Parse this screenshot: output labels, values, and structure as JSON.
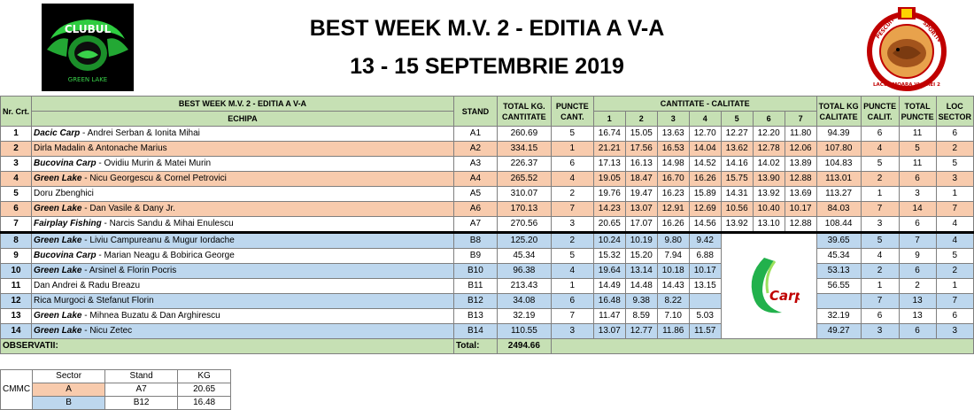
{
  "header": {
    "title_line1": "BEST WEEK M.V. 2 - EDITIA A V-A",
    "title_line2": "13 - 15 SEPTEMBRIE 2019",
    "logo_left_text_top": "CLUBUL",
    "logo_left_text_bottom": "GREEN LAKE",
    "logo_right_text_left": "PESCUIT",
    "logo_right_text_right": "SPORTIV",
    "logo_right_text_bottom": "LACUL MOARA VLASIEI 2"
  },
  "table": {
    "col_nr": "Nr. Crt.",
    "event_label": "BEST WEEK M.V. 2 - EDITIA A V-A",
    "team_header": "ECHIPA",
    "stand_header": "STAND",
    "total_kg_header_1": "TOTAL KG.",
    "total_kg_header_2": "CANTITATE",
    "puncte_cant_header_1": "PUNCTE",
    "puncte_cant_header_2": "CANT.",
    "cantitate_calitate_header": "CANTITATE - CALITATE",
    "round_headers": [
      "1",
      "2",
      "3",
      "4",
      "5",
      "6",
      "7"
    ],
    "total_kg_cal_header_1": "TOTAL KG",
    "total_kg_cal_header_2": "CALITATE",
    "puncte_calit_header_1": "PUNCTE",
    "puncte_calit_header_2": "CALIT.",
    "total_puncte_header_1": "TOTAL",
    "total_puncte_header_2": "PUNCTE",
    "loc_sector_header_1": "LOC",
    "loc_sector_header_2": "SECTOR",
    "rows": [
      {
        "nr": "1",
        "team": "Dacic Carp",
        "members": " - Andrei Serban & Ionita Mihai",
        "stand": "A1",
        "total_kg": "260.69",
        "puncte_cant": "5",
        "r": [
          "16.74",
          "15.05",
          "13.63",
          "12.70",
          "12.27",
          "12.20",
          "11.80"
        ],
        "total_cal": "94.39",
        "puncte_cal": "6",
        "total_puncte": "11",
        "loc": "6",
        "color": "white"
      },
      {
        "nr": "2",
        "team": "",
        "members": "Dirla Madalin & Antonache Marius",
        "stand": "A2",
        "total_kg": "334.15",
        "puncte_cant": "1",
        "r": [
          "21.21",
          "17.56",
          "16.53",
          "14.04",
          "13.62",
          "12.78",
          "12.06"
        ],
        "total_cal": "107.80",
        "puncte_cal": "4",
        "total_puncte": "5",
        "loc": "2",
        "color": "peach"
      },
      {
        "nr": "3",
        "team": "Bucovina Carp",
        "members": " - Ovidiu Murin & Matei Murin",
        "stand": "A3",
        "total_kg": "226.37",
        "puncte_cant": "6",
        "r": [
          "17.13",
          "16.13",
          "14.98",
          "14.52",
          "14.16",
          "14.02",
          "13.89"
        ],
        "total_cal": "104.83",
        "puncte_cal": "5",
        "total_puncte": "11",
        "loc": "5",
        "color": "white"
      },
      {
        "nr": "4",
        "team": "Green Lake",
        "members": " - Nicu Georgescu & Cornel Petrovici",
        "stand": "A4",
        "total_kg": "265.52",
        "puncte_cant": "4",
        "r": [
          "19.05",
          "18.47",
          "16.70",
          "16.26",
          "15.75",
          "13.90",
          "12.88"
        ],
        "total_cal": "113.01",
        "puncte_cal": "2",
        "total_puncte": "6",
        "loc": "3",
        "color": "peach"
      },
      {
        "nr": "5",
        "team": "",
        "members": "Doru Zbenghici",
        "stand": "A5",
        "total_kg": "310.07",
        "puncte_cant": "2",
        "r": [
          "19.76",
          "19.47",
          "16.23",
          "15.89",
          "14.31",
          "13.92",
          "13.69"
        ],
        "total_cal": "113.27",
        "puncte_cal": "1",
        "total_puncte": "3",
        "loc": "1",
        "color": "white"
      },
      {
        "nr": "6",
        "team": "Green Lake",
        "members": " - Dan Vasile & Dany Jr.",
        "stand": "A6",
        "total_kg": "170.13",
        "puncte_cant": "7",
        "r": [
          "14.23",
          "13.07",
          "12.91",
          "12.69",
          "10.56",
          "10.40",
          "10.17"
        ],
        "total_cal": "84.03",
        "puncte_cal": "7",
        "total_puncte": "14",
        "loc": "7",
        "color": "peach"
      },
      {
        "nr": "7",
        "team": "Fairplay Fishing",
        "members": " - Narcis Sandu & Mihai Enulescu",
        "stand": "A7",
        "total_kg": "270.56",
        "puncte_cant": "3",
        "r": [
          "20.65",
          "17.07",
          "16.26",
          "14.56",
          "13.92",
          "13.10",
          "12.88"
        ],
        "total_cal": "108.44",
        "puncte_cal": "3",
        "total_puncte": "6",
        "loc": "4",
        "color": "white"
      },
      {
        "nr": "8",
        "team": "Green Lake",
        "members": " - Liviu Campureanu & Mugur Iordache",
        "stand": "B8",
        "total_kg": "125.20",
        "puncte_cant": "2",
        "r": [
          "10.24",
          "10.19",
          "9.80",
          "9.42"
        ],
        "total_cal": "39.65",
        "puncte_cal": "5",
        "total_puncte": "7",
        "loc": "4",
        "color": "blue"
      },
      {
        "nr": "9",
        "team": "Bucovina Carp",
        "members": " - Marian Neagu & Bobirica George",
        "stand": "B9",
        "total_kg": "45.34",
        "puncte_cant": "5",
        "r": [
          "15.32",
          "15.20",
          "7.94",
          "6.88"
        ],
        "total_cal": "45.34",
        "puncte_cal": "4",
        "total_puncte": "9",
        "loc": "5",
        "color": "white"
      },
      {
        "nr": "10",
        "team": "Green Lake",
        "members": " - Arsinel & Florin Pocris",
        "stand": "B10",
        "total_kg": "96.38",
        "puncte_cant": "4",
        "r": [
          "19.64",
          "13.14",
          "10.18",
          "10.17"
        ],
        "total_cal": "53.13",
        "puncte_cal": "2",
        "total_puncte": "6",
        "loc": "2",
        "color": "blue"
      },
      {
        "nr": "11",
        "team": "",
        "members": "Dan Andrei & Radu Breazu",
        "stand": "B11",
        "total_kg": "213.43",
        "puncte_cant": "1",
        "r": [
          "14.49",
          "14.48",
          "14.43",
          "13.15"
        ],
        "total_cal": "56.55",
        "puncte_cal": "1",
        "total_puncte": "2",
        "loc": "1",
        "color": "white"
      },
      {
        "nr": "12",
        "team": "",
        "members": "Rica Murgoci & Stefanut Florin",
        "stand": "B12",
        "total_kg": "34.08",
        "puncte_cant": "6",
        "r": [
          "16.48",
          "9.38",
          "8.22",
          ""
        ],
        "total_cal": "",
        "puncte_cal": "7",
        "total_puncte": "13",
        "loc": "7",
        "color": "blue"
      },
      {
        "nr": "13",
        "team": "Green Lake",
        "members": " - Mihnea Buzatu & Dan Arghirescu",
        "stand": "B13",
        "total_kg": "32.19",
        "puncte_cant": "7",
        "r": [
          "11.47",
          "8.59",
          "7.10",
          "5.03"
        ],
        "total_cal": "32.19",
        "puncte_cal": "6",
        "total_puncte": "13",
        "loc": "6",
        "color": "white"
      },
      {
        "nr": "14",
        "team": "Green Lake",
        "members": " - Nicu Zetec",
        "stand": "B14",
        "total_kg": "110.55",
        "puncte_cant": "3",
        "r": [
          "13.07",
          "12.77",
          "11.86",
          "11.57"
        ],
        "total_cal": "49.27",
        "puncte_cal": "3",
        "total_puncte": "6",
        "loc": "3",
        "color": "blue"
      }
    ],
    "observatii_label": "OBSERVATII:",
    "total_label": "Total:",
    "total_value": "2494.66",
    "sponsor_logo_text": "Carp"
  },
  "obs_table": {
    "side_label": "CMMC",
    "headers": [
      "Sector",
      "Stand",
      "KG"
    ],
    "rows": [
      {
        "sector": "A",
        "stand": "A7",
        "kg": "20.65"
      },
      {
        "sector": "B",
        "stand": "B12",
        "kg": "16.48"
      }
    ]
  },
  "colors": {
    "header_green": "#c6e0b4",
    "row_peach": "#f8cbad",
    "row_blue": "#bdd7ee",
    "logo_green": "#39d14a"
  }
}
